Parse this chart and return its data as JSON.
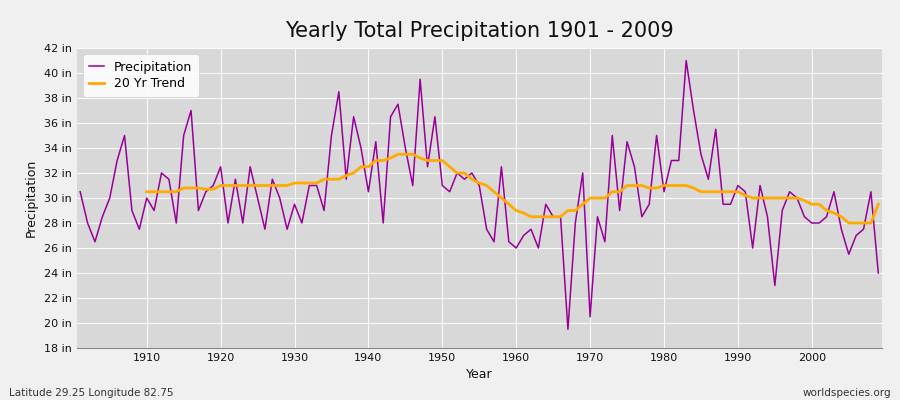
{
  "title": "Yearly Total Precipitation 1901 - 2009",
  "xlabel": "Year",
  "ylabel": "Precipitation",
  "footnote_left": "Latitude 29.25 Longitude 82.75",
  "footnote_right": "worldspecies.org",
  "legend_precipitation": "Precipitation",
  "legend_trend": "20 Yr Trend",
  "ylim": [
    18,
    42
  ],
  "ytick_step": 2,
  "years": [
    1901,
    1902,
    1903,
    1904,
    1905,
    1906,
    1907,
    1908,
    1909,
    1910,
    1911,
    1912,
    1913,
    1914,
    1915,
    1916,
    1917,
    1918,
    1919,
    1920,
    1921,
    1922,
    1923,
    1924,
    1925,
    1926,
    1927,
    1928,
    1929,
    1930,
    1931,
    1932,
    1933,
    1934,
    1935,
    1936,
    1937,
    1938,
    1939,
    1940,
    1941,
    1942,
    1943,
    1944,
    1945,
    1946,
    1947,
    1948,
    1949,
    1950,
    1951,
    1952,
    1953,
    1954,
    1955,
    1956,
    1957,
    1958,
    1959,
    1960,
    1961,
    1962,
    1963,
    1964,
    1965,
    1966,
    1967,
    1968,
    1969,
    1970,
    1971,
    1972,
    1973,
    1974,
    1975,
    1976,
    1977,
    1978,
    1979,
    1980,
    1981,
    1982,
    1983,
    1984,
    1985,
    1986,
    1987,
    1988,
    1989,
    1990,
    1991,
    1992,
    1993,
    1994,
    1995,
    1996,
    1997,
    1998,
    1999,
    2000,
    2001,
    2002,
    2003,
    2004,
    2005,
    2006,
    2007,
    2008,
    2009
  ],
  "precipitation": [
    30.5,
    28.0,
    26.5,
    28.5,
    30.0,
    33.0,
    35.0,
    29.0,
    27.5,
    30.0,
    29.0,
    32.0,
    31.5,
    28.0,
    35.0,
    37.0,
    29.0,
    30.5,
    31.0,
    32.5,
    28.0,
    31.5,
    28.0,
    32.5,
    30.0,
    27.5,
    31.5,
    30.0,
    27.5,
    29.5,
    28.0,
    31.0,
    31.0,
    29.0,
    35.0,
    38.5,
    31.5,
    36.5,
    34.0,
    30.5,
    34.5,
    28.0,
    36.5,
    37.5,
    34.0,
    31.0,
    39.5,
    32.5,
    36.5,
    31.0,
    30.5,
    32.0,
    31.5,
    32.0,
    31.0,
    27.5,
    26.5,
    32.5,
    26.5,
    26.0,
    27.0,
    27.5,
    26.0,
    29.5,
    28.5,
    28.5,
    19.5,
    28.0,
    32.0,
    20.5,
    28.5,
    26.5,
    35.0,
    29.0,
    34.5,
    32.5,
    28.5,
    29.5,
    35.0,
    30.5,
    33.0,
    33.0,
    41.0,
    37.0,
    33.5,
    31.5,
    35.5,
    29.5,
    29.5,
    31.0,
    30.5,
    26.0,
    31.0,
    28.5,
    23.0,
    29.0,
    30.5,
    30.0,
    28.5,
    28.0,
    28.0,
    28.5,
    30.5,
    27.5,
    25.5,
    27.0,
    27.5,
    30.5,
    24.0
  ],
  "trend": [
    null,
    null,
    null,
    null,
    null,
    null,
    null,
    null,
    null,
    30.5,
    30.5,
    30.5,
    30.5,
    30.5,
    30.8,
    30.8,
    30.8,
    30.7,
    30.7,
    31.0,
    31.0,
    31.0,
    31.0,
    31.0,
    31.0,
    31.0,
    31.0,
    31.0,
    31.0,
    31.2,
    31.2,
    31.2,
    31.2,
    31.5,
    31.5,
    31.5,
    31.8,
    32.0,
    32.5,
    32.5,
    33.0,
    33.0,
    33.2,
    33.5,
    33.5,
    33.5,
    33.2,
    33.0,
    33.0,
    33.0,
    32.5,
    32.0,
    32.0,
    31.5,
    31.2,
    31.0,
    30.5,
    30.0,
    29.5,
    29.0,
    28.8,
    28.5,
    28.5,
    28.5,
    28.5,
    28.5,
    29.0,
    29.0,
    29.5,
    30.0,
    30.0,
    30.0,
    30.5,
    30.5,
    31.0,
    31.0,
    31.0,
    30.8,
    30.8,
    31.0,
    31.0,
    31.0,
    31.0,
    30.8,
    30.5,
    30.5,
    30.5,
    30.5,
    30.5,
    30.5,
    30.2,
    30.0,
    30.0,
    30.0,
    30.0,
    30.0,
    30.0,
    30.0,
    29.8,
    29.5,
    29.5,
    29.0,
    28.8,
    28.5,
    28.0,
    28.0,
    28.0,
    28.0,
    29.5
  ],
  "bg_color": "#f0f0f0",
  "grid_color": "#ffffff",
  "precip_color": "#990099",
  "trend_color": "#ffaa00",
  "plot_bg_color": "#d8d8d8",
  "title_fontsize": 15,
  "label_fontsize": 9,
  "tick_fontsize": 8,
  "footnote_fontsize": 7.5
}
